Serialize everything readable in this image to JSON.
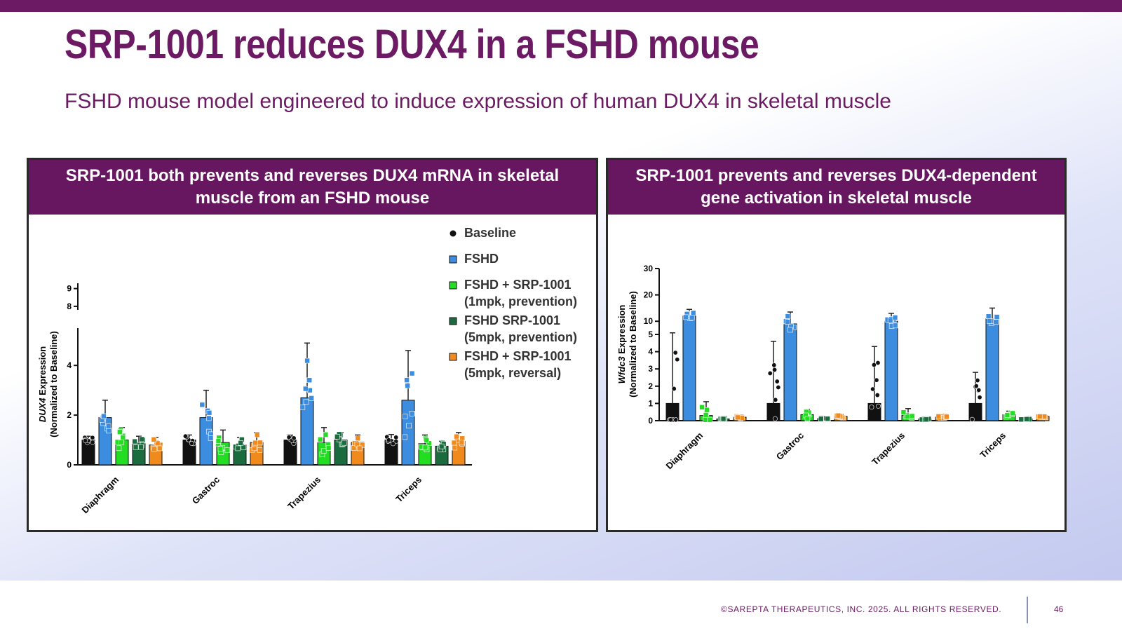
{
  "slide": {
    "title": "SRP-1001 reduces DUX4 in a FSHD mouse",
    "subtitle": "FSHD mouse model engineered to induce expression of human DUX4 in skeletal muscle",
    "copyright": "©SAREPTA THERAPEUTICS, INC. 2025.  ALL RIGHTS RESERVED.",
    "page_number": "46",
    "colors": {
      "brand": "#6b1a63",
      "header_band": "#661760"
    }
  },
  "panels": [
    {
      "header": "SRP-1001 both prevents and reverses DUX4 mRNA in skeletal muscle from an FSHD mouse"
    },
    {
      "header": "SRP-1001 prevents and reverses DUX4-dependent gene activation in skeletal muscle"
    }
  ],
  "chart_data": [
    {
      "type": "bar",
      "ylabel_italic": "DUX4",
      "ylabel_rest": " Expression",
      "ylabel_line2": "(Normalized to Baseline)",
      "categories": [
        "Diaphragm",
        "Gastroc",
        "Trapezius",
        "Triceps"
      ],
      "y_axis": {
        "broken": true,
        "lower_range": [
          0,
          5.5
        ],
        "lower_ticks": [
          0,
          2,
          4
        ],
        "upper_range": [
          7.8,
          9.3
        ],
        "upper_ticks": [
          8,
          9
        ]
      },
      "legend_placement": "top-right",
      "series": [
        {
          "name": "Baseline",
          "color": "#111111",
          "marker": "circle",
          "values": [
            1.0,
            1.0,
            1.0,
            1.0
          ],
          "error": [
            0.15,
            0.2,
            0.2,
            0.22
          ]
        },
        {
          "name": "FSHD",
          "color": "#3c8de0",
          "marker": "square",
          "values": [
            1.9,
            1.9,
            2.7,
            2.6
          ],
          "error": [
            0.7,
            1.1,
            2.2,
            2.0
          ]
        },
        {
          "name": "FSHD + SRP-1001\n(1mpk, prevention)",
          "color": "#22dd22",
          "marker": "square",
          "values": [
            1.0,
            0.9,
            0.9,
            0.85
          ],
          "error": [
            0.5,
            0.5,
            0.6,
            0.35
          ]
        },
        {
          "name": "FSHD SRP-1001\n(5mpk, prevention)",
          "color": "#1a6b3e",
          "marker": "square",
          "values": [
            0.85,
            0.8,
            1.0,
            0.75
          ],
          "error": [
            0.3,
            0.3,
            0.3,
            0.2
          ]
        },
        {
          "name": "FSHD + SRP-1001\n(5mpk, reversal)",
          "color": "#f08a1c",
          "marker": "square",
          "values": [
            0.8,
            0.9,
            0.9,
            0.95
          ],
          "error": [
            0.3,
            0.4,
            0.3,
            0.35
          ]
        }
      ]
    },
    {
      "type": "bar",
      "ylabel_italic": "Wfdc3",
      "ylabel_rest": " Expression",
      "ylabel_line2": "(Normalized to Baseline)",
      "categories": [
        "Diaphragm",
        "Gastroc",
        "Trapezius",
        "Triceps"
      ],
      "y_axis": {
        "broken": true,
        "lower_range": [
          0,
          5
        ],
        "lower_ticks": [
          0,
          1,
          2,
          3,
          4,
          5
        ],
        "upper_range": [
          5,
          30
        ],
        "upper_ticks": [
          10,
          20,
          30
        ]
      },
      "series": [
        {
          "name": "Baseline",
          "color": "#111111",
          "marker": "circle",
          "values": [
            1.0,
            1.0,
            1.0,
            1.0
          ],
          "error": [
            4.6,
            3.6,
            3.3,
            1.8
          ]
        },
        {
          "name": "FSHD",
          "color": "#3c8de0",
          "marker": "square",
          "values": [
            12,
            9,
            10,
            11
          ],
          "error": [
            2.5,
            4.5,
            3,
            4
          ]
        },
        {
          "name": "FSHD + SRP-1001\n(1mpk, prevention)",
          "color": "#22dd22",
          "marker": "square",
          "values": [
            0.3,
            0.35,
            0.3,
            0.35
          ],
          "error": [
            0.8,
            0.3,
            0.4,
            0.2
          ]
        },
        {
          "name": "FSHD SRP-1001\n(5mpk, prevention)",
          "color": "#1a6b3e",
          "marker": "square",
          "values": [
            0.1,
            0.12,
            0.1,
            0.1
          ],
          "error": [
            0.05,
            0.05,
            0.05,
            0.05
          ]
        },
        {
          "name": "FSHD + SRP-1001\n(5mpk, reversal)",
          "color": "#f08a1c",
          "marker": "square",
          "values": [
            0.2,
            0.25,
            0.2,
            0.25
          ],
          "error": [
            0.1,
            0.1,
            0.1,
            0.1
          ]
        }
      ]
    }
  ]
}
